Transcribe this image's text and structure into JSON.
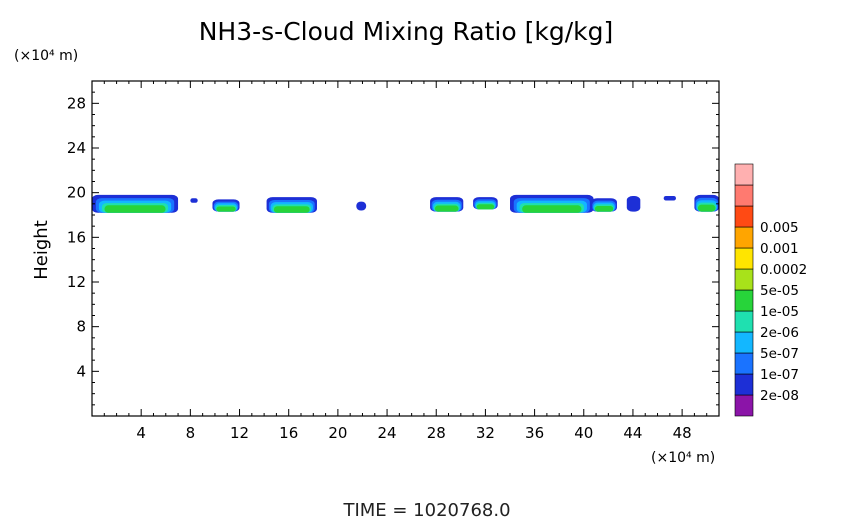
{
  "chart_data": {
    "type": "heatmap",
    "title": "NH3-s-Cloud Mixing Ratio [kg/kg]",
    "ylabel": "Height",
    "y_unit": "(×10⁴ m)",
    "x_unit": "(×10⁴ m)",
    "footer": "TIME  =  1020768.0",
    "xlim": [
      0,
      51
    ],
    "ylim": [
      0,
      30
    ],
    "x_ticks": [
      4,
      8,
      12,
      16,
      20,
      24,
      28,
      32,
      36,
      40,
      44,
      48
    ],
    "x_tick_labels": [
      "4",
      "8",
      "12",
      "16",
      "20",
      "24",
      "28",
      "32",
      "36",
      "40",
      "44",
      "48"
    ],
    "y_ticks": [
      4,
      8,
      12,
      16,
      20,
      24,
      28
    ],
    "y_tick_labels": [
      "4",
      "8",
      "12",
      "16",
      "20",
      "24",
      "28"
    ],
    "colorbar": {
      "levels": [
        "2e-08",
        "1e-07",
        "5e-07",
        "2e-06",
        "1e-05",
        "5e-05",
        "0.0002",
        "0.001",
        "0.005"
      ],
      "colors": [
        "#8b14a8",
        "#1d2fd6",
        "#1a73ff",
        "#13b7ff",
        "#1fe0b0",
        "#27d43a",
        "#a8e21a",
        "#ffe500",
        "#ffa500",
        "#ff4a14",
        "#ff7a70",
        "#ffb0b0"
      ]
    },
    "cloud_segments": [
      {
        "x_start": 0.0,
        "x_end": 7.0,
        "y_bottom": 18.2,
        "y_top": 19.8
      },
      {
        "x_start": 8.0,
        "x_end": 8.6,
        "y_bottom": 19.1,
        "y_top": 19.5
      },
      {
        "x_start": 9.8,
        "x_end": 12.0,
        "y_bottom": 18.3,
        "y_top": 19.4
      },
      {
        "x_start": 14.2,
        "x_end": 18.3,
        "y_bottom": 18.2,
        "y_top": 19.6
      },
      {
        "x_start": 21.5,
        "x_end": 22.3,
        "y_bottom": 18.4,
        "y_top": 19.2
      },
      {
        "x_start": 27.5,
        "x_end": 30.2,
        "y_bottom": 18.3,
        "y_top": 19.6
      },
      {
        "x_start": 31.0,
        "x_end": 33.0,
        "y_bottom": 18.5,
        "y_top": 19.6
      },
      {
        "x_start": 34.0,
        "x_end": 40.8,
        "y_bottom": 18.2,
        "y_top": 19.8
      },
      {
        "x_start": 40.6,
        "x_end": 42.7,
        "y_bottom": 18.3,
        "y_top": 19.5
      },
      {
        "x_start": 43.5,
        "x_end": 44.6,
        "y_bottom": 18.3,
        "y_top": 19.7
      },
      {
        "x_start": 46.5,
        "x_end": 47.5,
        "y_bottom": 19.3,
        "y_top": 19.7
      },
      {
        "x_start": 49.0,
        "x_end": 51.0,
        "y_bottom": 18.3,
        "y_top": 19.8
      }
    ]
  }
}
